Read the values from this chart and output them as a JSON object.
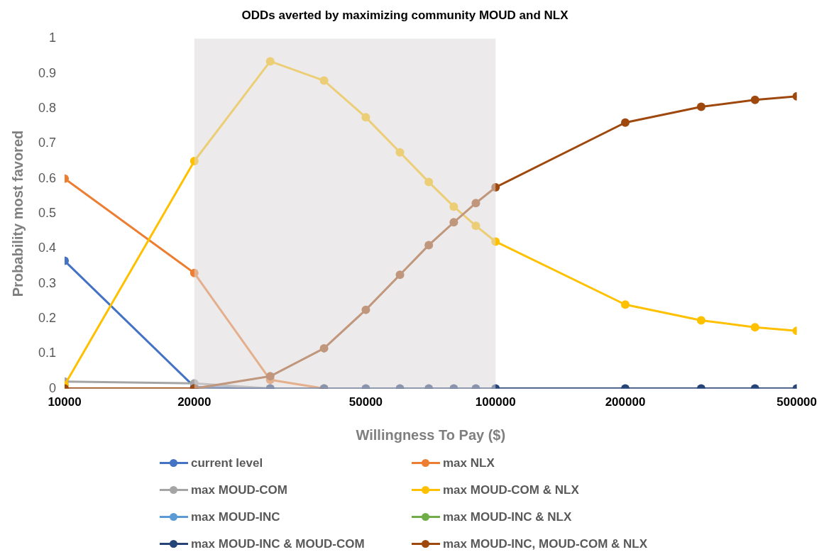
{
  "chart_data": {
    "type": "line",
    "title": "ODDs averted by maximizing community MOUD and NLX",
    "xlabel": "Willingness To Pay ($)",
    "ylabel": "Probability most favored",
    "x": [
      10000,
      20000,
      30000,
      40000,
      50000,
      60000,
      70000,
      80000,
      90000,
      100000,
      200000,
      300000,
      400000,
      500000
    ],
    "log": "x",
    "xlim": [
      10000,
      500000
    ],
    "xticks": [
      10000,
      20000,
      50000,
      100000,
      200000,
      500000
    ],
    "ylim": [
      0,
      1
    ],
    "yticks": [
      0,
      0.1,
      0.2,
      0.3,
      0.4,
      0.5,
      0.6,
      0.7,
      0.8,
      0.9,
      1
    ],
    "grid": false,
    "legend": "bottom",
    "marker": "circle",
    "line_style": "solid",
    "bands": [
      {
        "axis": "x",
        "from": 20000,
        "to": 100000,
        "color": "#dcd8d8"
      }
    ],
    "series": [
      {
        "name": "current level",
        "color": "#4472c4",
        "values": [
          0.365,
          0.005,
          0,
          null,
          null,
          null,
          null,
          null,
          null,
          null,
          null,
          null,
          null,
          null
        ]
      },
      {
        "name": "max  NLX",
        "color": "#ed7d31",
        "values": [
          0.6,
          0.33,
          0.025,
          0,
          null,
          null,
          null,
          null,
          null,
          null,
          null,
          null,
          null,
          null
        ]
      },
      {
        "name": "max MOUD-COM",
        "color": "#a5a5a5",
        "values": [
          0.02,
          0.015,
          0,
          null,
          null,
          null,
          null,
          null,
          null,
          null,
          null,
          null,
          null,
          null
        ]
      },
      {
        "name": "max MOUD-COM & NLX",
        "color": "#ffc000",
        "values": [
          0.01,
          0.65,
          0.935,
          0.88,
          0.775,
          0.675,
          0.59,
          0.52,
          0.465,
          0.42,
          0.24,
          0.195,
          0.175,
          0.165
        ]
      },
      {
        "name": "max MOUD-INC",
        "color": "#5b9bd5",
        "values": [
          null,
          null,
          null,
          null,
          null,
          null,
          null,
          null,
          null,
          null,
          null,
          null,
          null,
          null
        ]
      },
      {
        "name": "max MOUD-INC & NLX",
        "color": "#70ad47",
        "values": [
          null,
          null,
          null,
          null,
          null,
          null,
          null,
          null,
          null,
          null,
          null,
          null,
          null,
          null
        ]
      },
      {
        "name": "max MOUD-INC & MOUD-COM",
        "color": "#264478",
        "values": [
          null,
          0,
          0,
          0,
          0,
          0,
          0,
          0,
          0,
          0,
          0,
          0,
          0,
          0
        ]
      },
      {
        "name": "max MOUD-INC, MOUD-COM & NLX",
        "color": "#9e480e",
        "values": [
          0,
          0,
          0.035,
          0.115,
          0.225,
          0.325,
          0.41,
          0.475,
          0.53,
          0.575,
          0.76,
          0.805,
          0.825,
          0.835
        ]
      }
    ]
  }
}
